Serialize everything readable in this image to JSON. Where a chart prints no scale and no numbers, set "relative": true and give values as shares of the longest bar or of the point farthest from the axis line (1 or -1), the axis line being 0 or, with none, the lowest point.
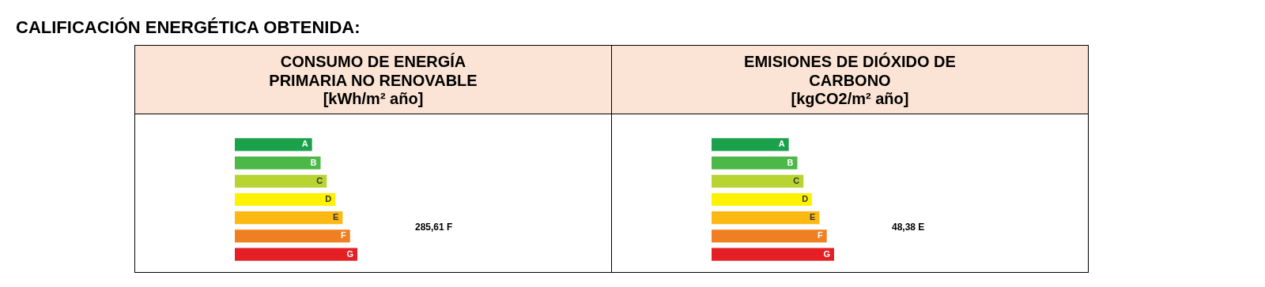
{
  "chart_data": [
    {
      "type": "other",
      "title": "CALIFICACIÓN ENERGÉTICA OBTENIDA:"
    },
    {
      "type": "bar",
      "orientation": "horizontal",
      "relative": true,
      "title": "CONSUMO DE ENERGÍA PRIMARIA NO RENOVABLE",
      "subtitle": "[kWh/m² año]",
      "categories": [
        "A",
        "B",
        "C",
        "D",
        "E",
        "F",
        "G"
      ],
      "values": [
        0.63,
        0.7,
        0.75,
        0.82,
        0.88,
        0.94,
        1
      ],
      "colors": [
        "#1ba04b",
        "#4cb848",
        "#b8d433",
        "#fff200",
        "#fdb913",
        "#f07f22",
        "#e41f26"
      ],
      "annotations": [
        "285,61 F"
      ]
    },
    {
      "type": "bar",
      "orientation": "horizontal",
      "relative": true,
      "title": "EMISIONES DE DIÓXIDO DE CARBONO",
      "subtitle": "[kgCO2/m² año]",
      "categories": [
        "A",
        "B",
        "C",
        "D",
        "E",
        "F",
        "G"
      ],
      "values": [
        0.63,
        0.7,
        0.75,
        0.82,
        0.88,
        0.94,
        1
      ],
      "colors": [
        "#1ba04b",
        "#4cb848",
        "#b8d433",
        "#fff200",
        "#fdb913",
        "#f07f22",
        "#e41f26"
      ],
      "annotations": [
        "48,38 E"
      ]
    }
  ]
}
